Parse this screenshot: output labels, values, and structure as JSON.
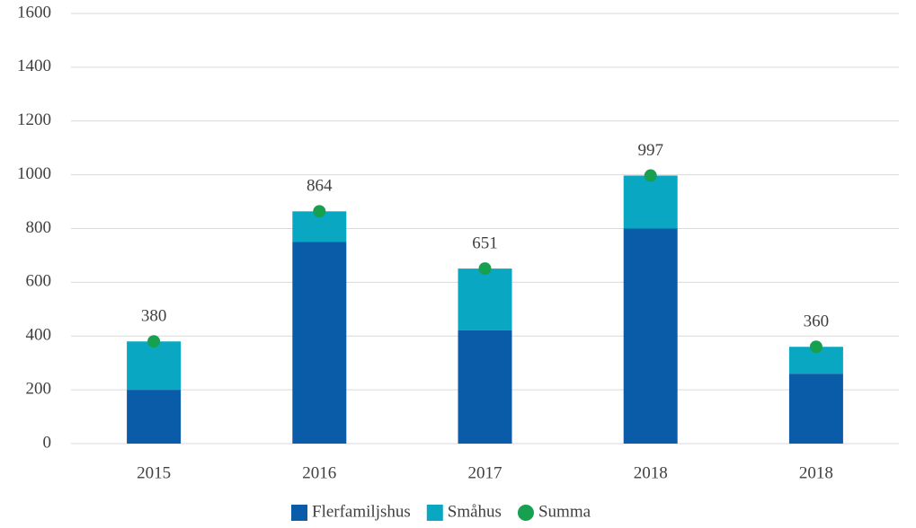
{
  "chart_data": {
    "type": "bar",
    "stacked": true,
    "categories": [
      "2015",
      "2016",
      "2017",
      "2018",
      "2018"
    ],
    "series": [
      {
        "name": "Flerfamiljshus",
        "color": "#0b5ca8",
        "values": [
          200,
          750,
          422,
          800,
          260
        ]
      },
      {
        "name": "Småhus",
        "color": "#0aa7c2",
        "values": [
          180,
          114,
          229,
          197,
          100
        ]
      },
      {
        "name": "Summa",
        "color": "#17a050",
        "type": "dot",
        "values": [
          380,
          864,
          651,
          997,
          360
        ]
      }
    ],
    "ylim": [
      0,
      1600
    ],
    "yticks": [
      0,
      200,
      400,
      600,
      800,
      1000,
      1200,
      1400,
      1600
    ],
    "grid": true,
    "legend": "bottom"
  }
}
